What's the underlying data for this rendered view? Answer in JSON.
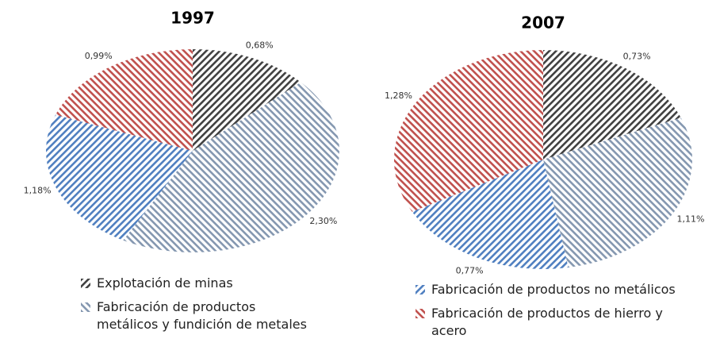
{
  "chart_data": [
    {
      "type": "pie",
      "title": "1997",
      "categories": [
        "Explotación de minas",
        "Fabricación de productos metálicos y fundición de metales",
        "Fabricación de productos no metálicos",
        "Fabricación de productos de hierro y acero"
      ],
      "values": [
        0.68,
        2.3,
        1.18,
        0.99
      ],
      "value_labels": [
        "0,68%",
        "2,30%",
        "1,18%",
        "0,99%"
      ],
      "colors": [
        "#404040",
        "#8497b0",
        "#4f7fc0",
        "#c0504d"
      ]
    },
    {
      "type": "pie",
      "title": "2007",
      "categories": [
        "Explotación de minas",
        "Fabricación de productos metálicos y fundición de metales",
        "Fabricación de productos no metálicos",
        "Fabricación de productos de hierro y acero"
      ],
      "values": [
        0.73,
        1.11,
        0.77,
        1.28
      ],
      "value_labels": [
        "0,73%",
        "1,11%",
        "0,77%",
        "1,28%"
      ],
      "colors": [
        "#404040",
        "#8497b0",
        "#4f7fc0",
        "#c0504d"
      ]
    }
  ]
}
